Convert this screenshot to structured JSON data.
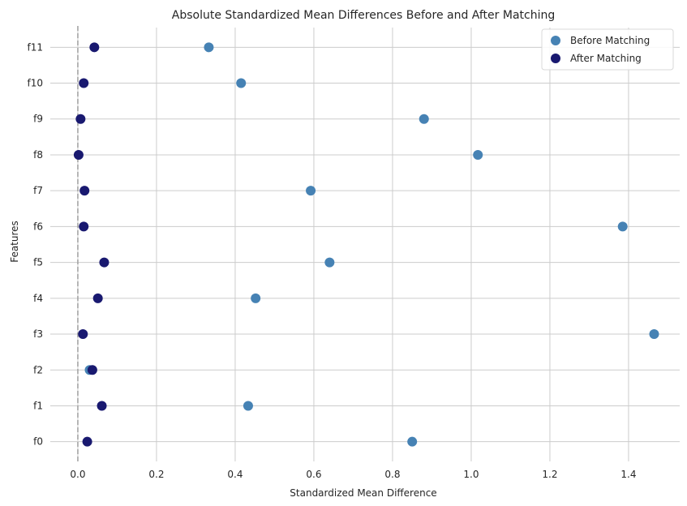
{
  "chart_data": {
    "type": "scatter",
    "title": "Absolute Standardized Mean Differences Before and After Matching",
    "xlabel": "Standardized Mean Difference",
    "ylabel": "Features",
    "xlim": [
      -0.07,
      1.53
    ],
    "x_ticks": [
      0.0,
      0.2,
      0.4,
      0.6,
      0.8,
      1.0,
      1.2,
      1.4
    ],
    "x_tick_labels": [
      "0.0",
      "0.2",
      "0.4",
      "0.6",
      "0.8",
      "1.0",
      "1.2",
      "1.4"
    ],
    "categories": [
      "f0",
      "f1",
      "f2",
      "f3",
      "f4",
      "f5",
      "f6",
      "f7",
      "f8",
      "f9",
      "f10",
      "f11"
    ],
    "reference_line_x": 0.0,
    "grid": true,
    "legend_position": "top-right",
    "series": [
      {
        "name": "Before Matching",
        "color": "#4682b4",
        "values": [
          0.85,
          0.433,
          0.03,
          1.465,
          0.452,
          0.64,
          1.385,
          0.592,
          1.017,
          0.88,
          0.415,
          0.333
        ]
      },
      {
        "name": "After Matching",
        "color": "#191970",
        "values": [
          0.024,
          0.061,
          0.037,
          0.013,
          0.051,
          0.067,
          0.015,
          0.017,
          0.002,
          0.007,
          0.015,
          0.042
        ]
      }
    ]
  }
}
